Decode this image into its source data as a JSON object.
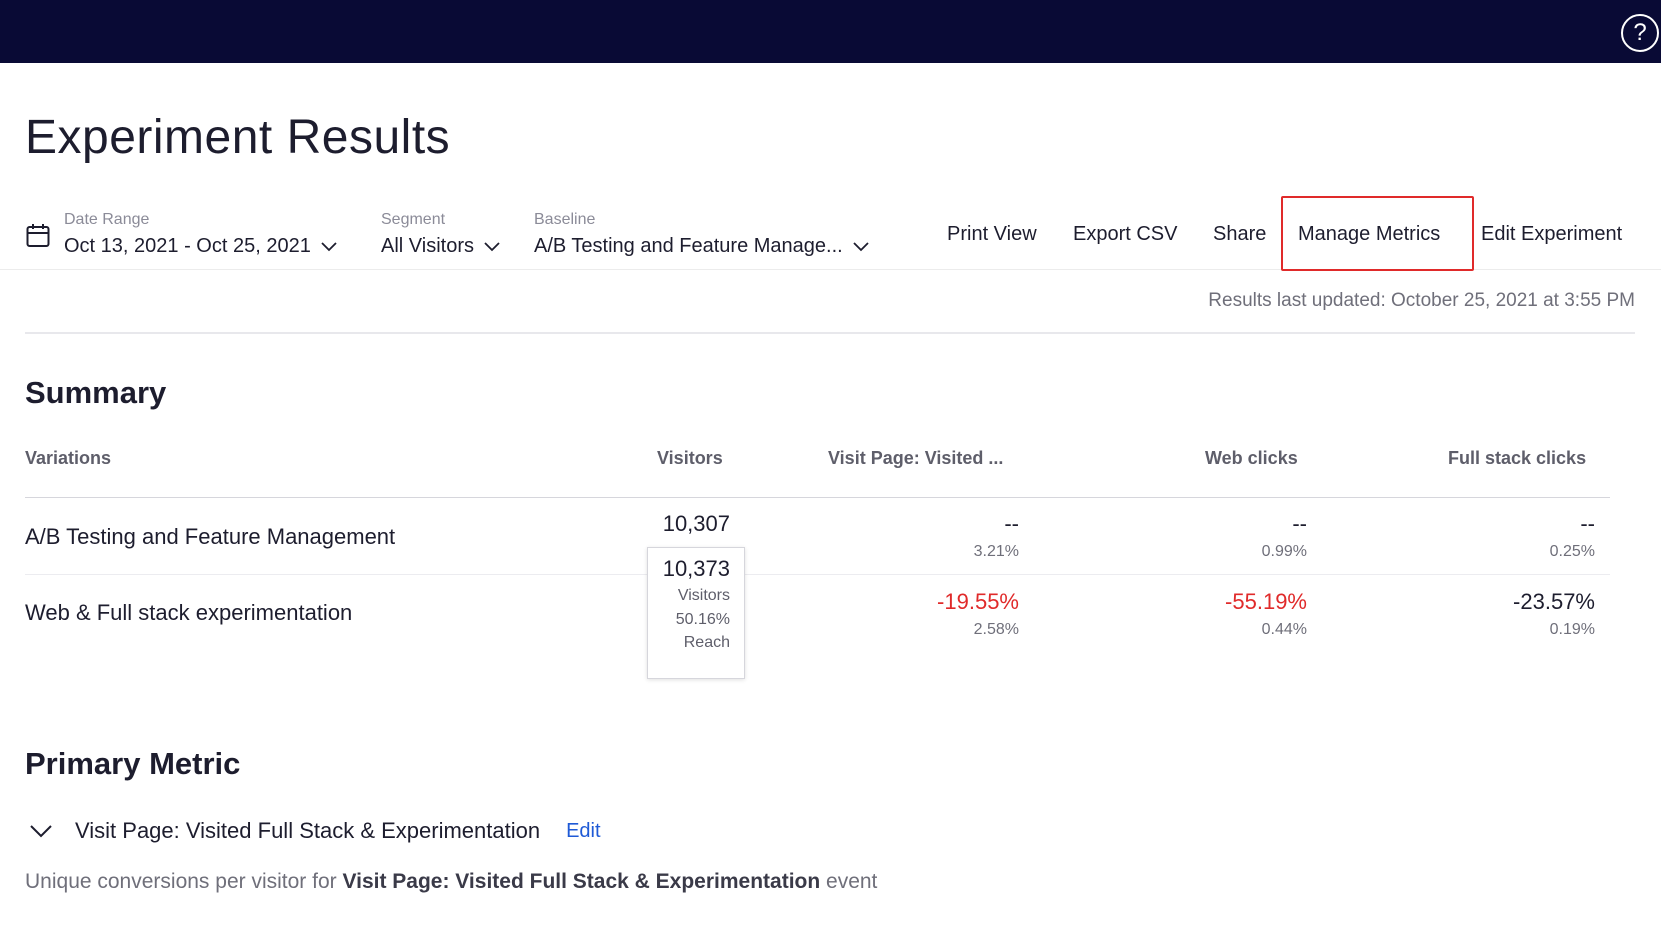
{
  "header": {
    "help_icon": "question-circle-icon"
  },
  "page": {
    "title": "Experiment Results"
  },
  "filters": {
    "date_range": {
      "label": "Date Range",
      "value": "Oct 13, 2021 - Oct 25, 2021"
    },
    "segment": {
      "label": "Segment",
      "value": "All Visitors"
    },
    "baseline": {
      "label": "Baseline",
      "value": "A/B Testing and Feature Manage..."
    }
  },
  "actions": {
    "print_view": "Print View",
    "export_csv": "Export CSV",
    "share": "Share",
    "manage_metrics": "Manage Metrics",
    "edit_experiment": "Edit Experiment"
  },
  "results_updated": "Results last updated: October 25, 2021 at 3:55 PM",
  "summary": {
    "title": "Summary",
    "columns": [
      "Variations",
      "Visitors",
      "Visit Page: Visited ...",
      "Web clicks",
      "Full stack clicks"
    ],
    "rows": [
      {
        "name": "A/B Testing and Feature Management",
        "visitors": "10,307",
        "visit_page": {
          "main": "--",
          "sub": "3.21%"
        },
        "web_clicks": {
          "main": "--",
          "sub": "0.99%"
        },
        "full_stack_clicks": {
          "main": "--",
          "sub": "0.25%"
        }
      },
      {
        "name": "Web & Full stack experimentation",
        "visit_page": {
          "main": "-19.55%",
          "sub": "2.58%"
        },
        "web_clicks": {
          "main": "-55.19%",
          "sub": "0.44%"
        },
        "full_stack_clicks": {
          "main": "-23.57%",
          "sub": "0.19%"
        }
      }
    ],
    "tooltip": {
      "visitors": "10,373",
      "visitors_label": "Visitors",
      "reach": "50.16%",
      "reach_label": "Reach"
    }
  },
  "primary_metric": {
    "title": "Primary Metric",
    "name": "Visit Page: Visited Full Stack & Experimentation",
    "edit_label": "Edit",
    "desc_prefix": "Unique conversions per visitor for ",
    "desc_bold": "Visit Page: Visited Full Stack & Experimentation",
    "desc_suffix": " event"
  },
  "colors": {
    "topbar": "#090a35",
    "negative": "#e02a2a",
    "link": "#1f5ad6",
    "highlight": "#e02a2a"
  }
}
